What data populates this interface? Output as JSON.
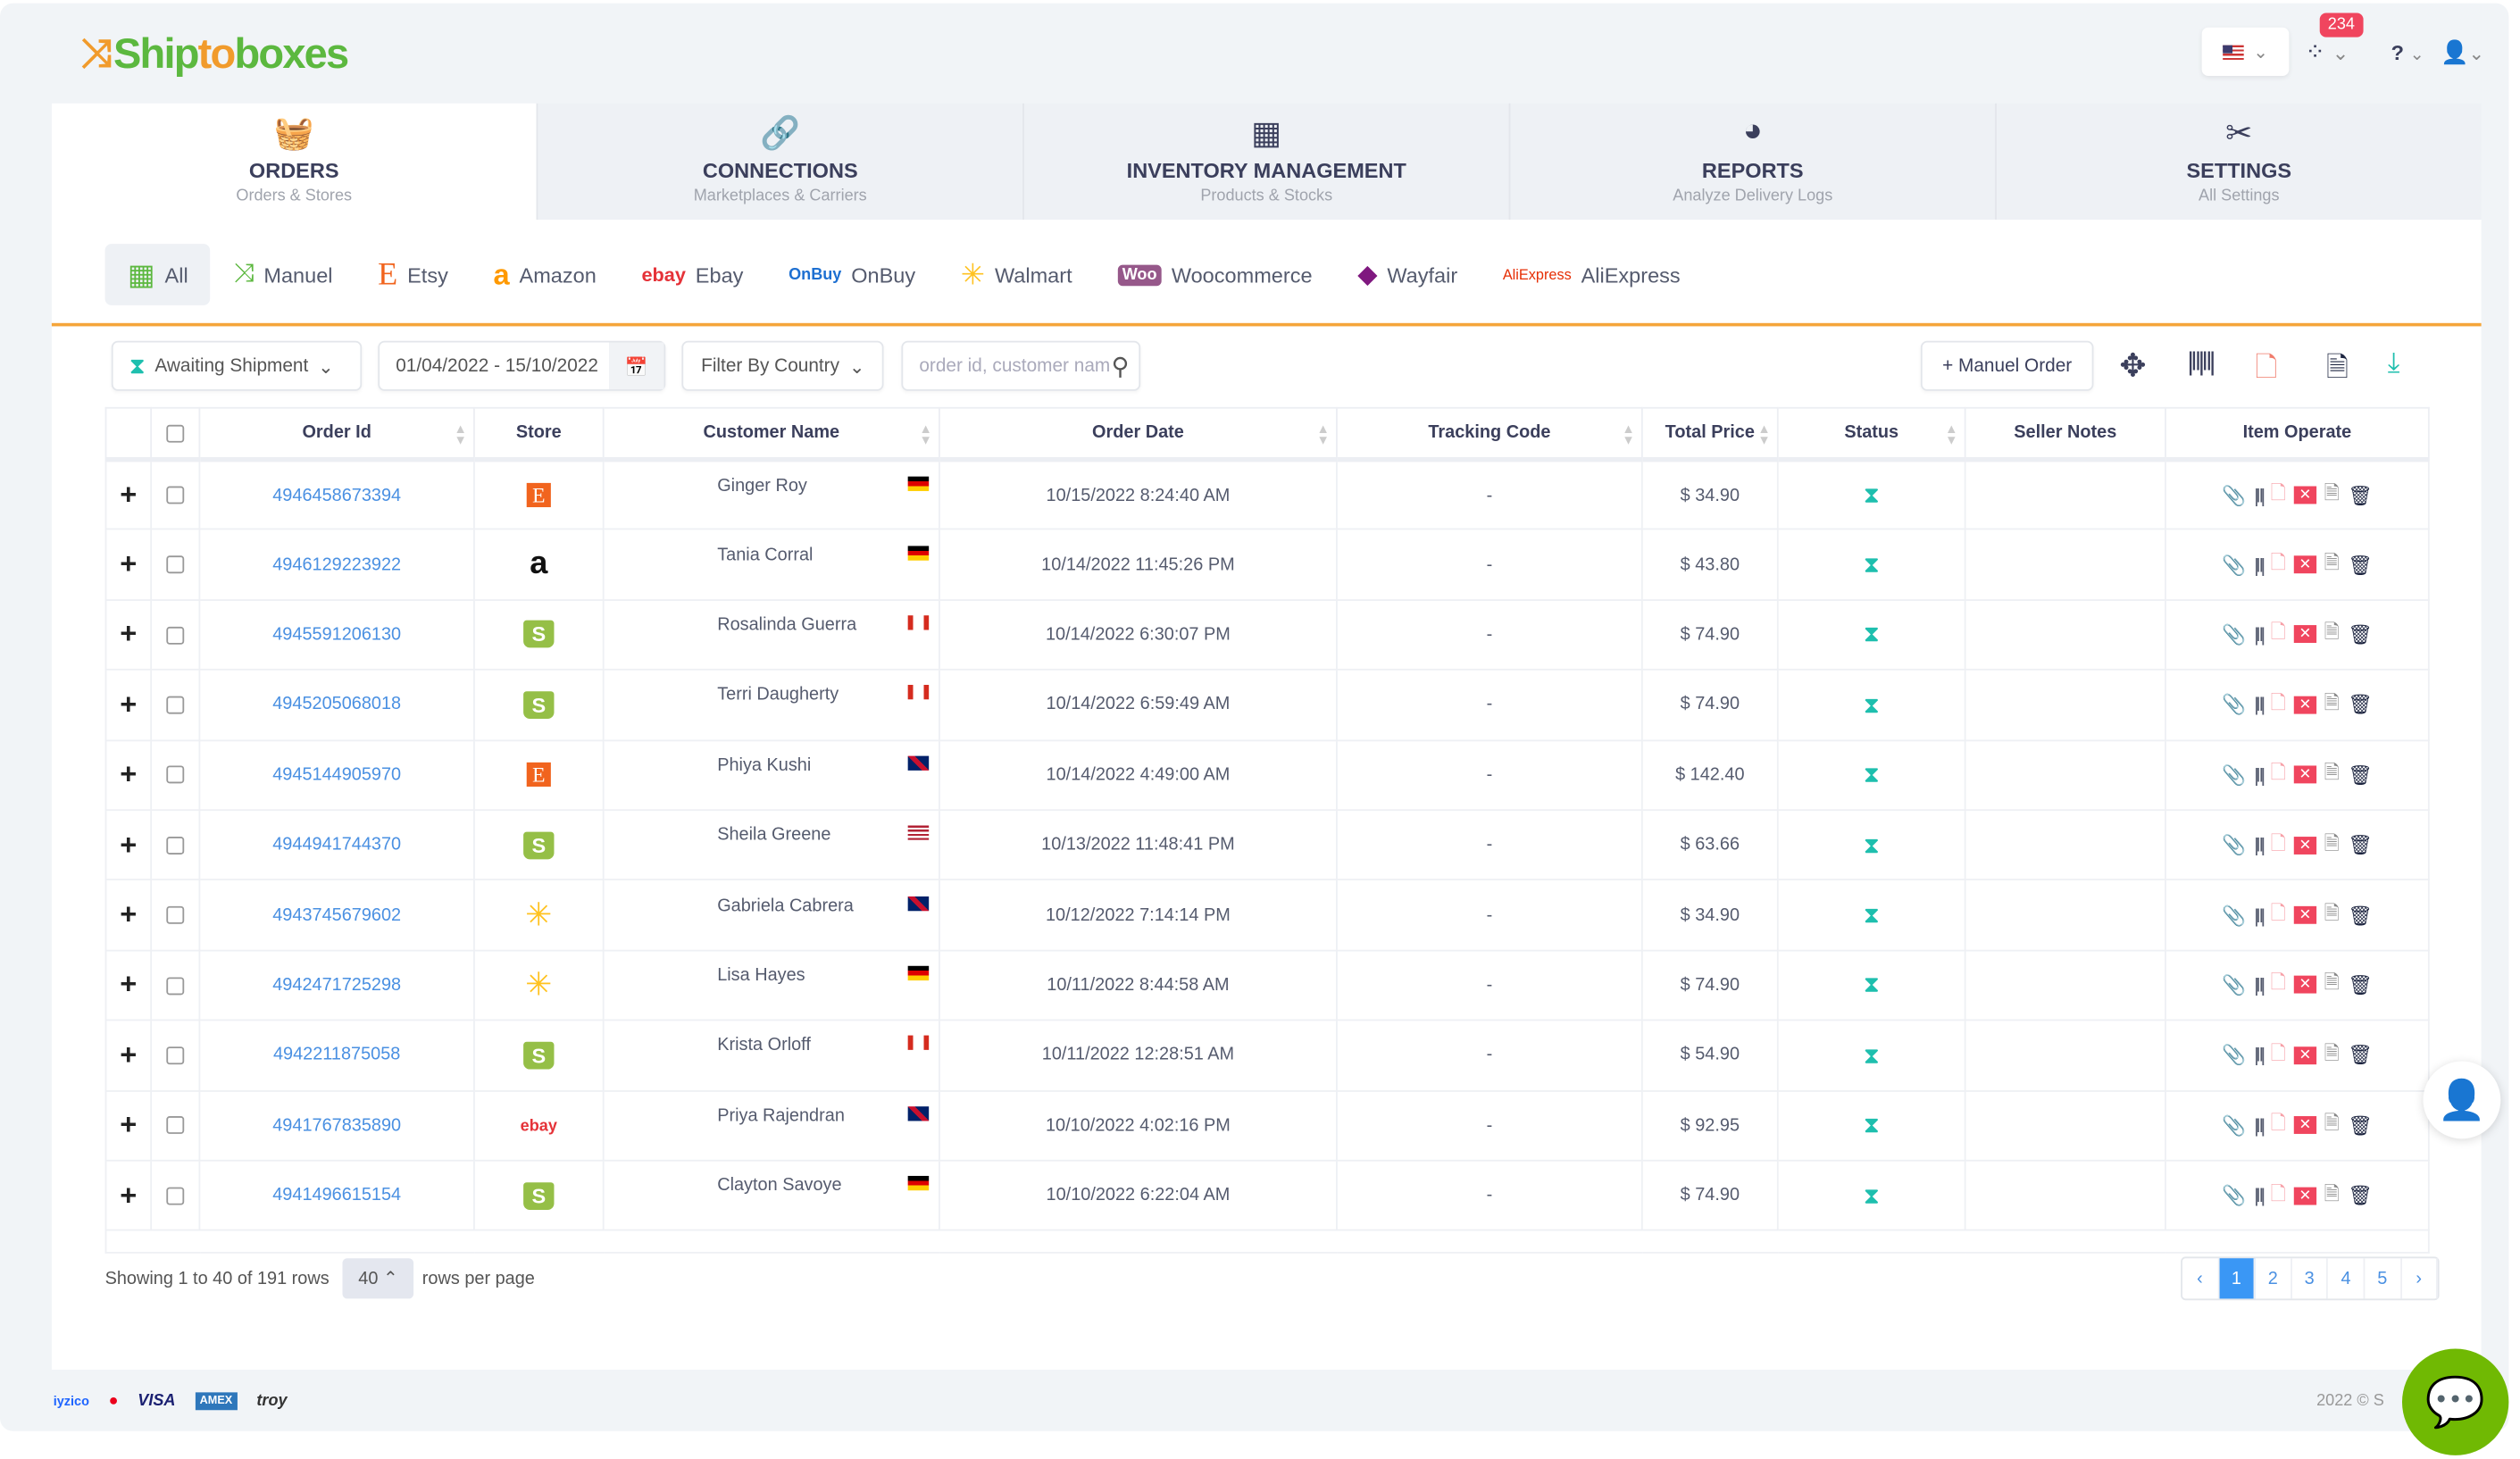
{
  "brand": {
    "name_part1": "Ship",
    "name_part2": "to",
    "name_part3": "boxes"
  },
  "topbar": {
    "notification_count": "234",
    "language": "US"
  },
  "nav": [
    {
      "label": "ORDERS",
      "sub": "Orders & Stores",
      "icon": "basket-icon"
    },
    {
      "label": "CONNECTIONS",
      "sub": "Marketplaces & Carriers",
      "icon": "link-icon"
    },
    {
      "label": "INVENTORY MANAGEMENT",
      "sub": "Products & Stocks",
      "icon": "warehouse-icon"
    },
    {
      "label": "REPORTS",
      "sub": "Analyze Delivery Logs",
      "icon": "pie-chart-icon"
    },
    {
      "label": "SETTINGS",
      "sub": "All Settings",
      "icon": "tools-icon"
    }
  ],
  "stores": [
    {
      "label": "All",
      "logo": ""
    },
    {
      "label": "Manuel",
      "logo": ""
    },
    {
      "label": "Etsy",
      "logo": "E"
    },
    {
      "label": "Amazon",
      "logo": "a"
    },
    {
      "label": "Ebay",
      "logo": "ebay"
    },
    {
      "label": "OnBuy",
      "logo": "OnBuy"
    },
    {
      "label": "Walmart",
      "logo": ""
    },
    {
      "label": "Woocommerce",
      "logo": "Woo"
    },
    {
      "label": "Wayfair",
      "logo": ""
    },
    {
      "label": "AliExpress",
      "logo": "AliExpress"
    }
  ],
  "filters": {
    "status": "Awaiting Shipment",
    "date_range": "01/04/2022 - 15/10/2022",
    "country": "Filter By Country",
    "search_placeholder": "order id, customer nam",
    "manual_order": "+ Manuel Order"
  },
  "table": {
    "headers": [
      "Order Id",
      "Store",
      "Customer Name",
      "Order Date",
      "Tracking Code",
      "Total Price",
      "Status",
      "Seller Notes",
      "Item Operate"
    ],
    "rows": [
      {
        "id": "4946458673394",
        "store": "etsy",
        "name": "Ginger Roy",
        "country": "DE",
        "date": "10/15/2022 8:24:40 AM",
        "tracking": "-",
        "price": "$ 34.90"
      },
      {
        "id": "4946129223922",
        "store": "amazon",
        "name": "Tania Corral",
        "country": "DE",
        "date": "10/14/2022 11:45:26 PM",
        "tracking": "-",
        "price": "$ 43.80"
      },
      {
        "id": "4945591206130",
        "store": "shopify",
        "name": "Rosalinda Guerra",
        "country": "CA",
        "date": "10/14/2022 6:30:07 PM",
        "tracking": "-",
        "price": "$ 74.90"
      },
      {
        "id": "4945205068018",
        "store": "shopify",
        "name": "Terri Daugherty",
        "country": "CA",
        "date": "10/14/2022 6:59:49 AM",
        "tracking": "-",
        "price": "$ 74.90"
      },
      {
        "id": "4945144905970",
        "store": "etsy",
        "name": "Phiya Kushi",
        "country": "GB",
        "date": "10/14/2022 4:49:00 AM",
        "tracking": "-",
        "price": "$ 142.40"
      },
      {
        "id": "4944941744370",
        "store": "shopify",
        "name": "Sheila Greene",
        "country": "US",
        "date": "10/13/2022 11:48:41 PM",
        "tracking": "-",
        "price": "$ 63.66"
      },
      {
        "id": "4943745679602",
        "store": "walmart",
        "name": "Gabriela Cabrera",
        "country": "GB",
        "date": "10/12/2022 7:14:14 PM",
        "tracking": "-",
        "price": "$ 34.90"
      },
      {
        "id": "4942471725298",
        "store": "walmart",
        "name": "Lisa Hayes",
        "country": "DE",
        "date": "10/11/2022 8:44:58 AM",
        "tracking": "-",
        "price": "$ 74.90"
      },
      {
        "id": "4942211875058",
        "store": "shopify",
        "name": "Krista Orloff",
        "country": "CA",
        "date": "10/11/2022 12:28:51 AM",
        "tracking": "-",
        "price": "$ 54.90"
      },
      {
        "id": "4941767835890",
        "store": "ebay",
        "name": "Priya Rajendran",
        "country": "GB",
        "date": "10/10/2022 4:02:16 PM",
        "tracking": "-",
        "price": "$ 92.95"
      },
      {
        "id": "4941496615154",
        "store": "shopify",
        "name": "Clayton Savoye",
        "country": "DE",
        "date": "10/10/2022 6:22:04 AM",
        "tracking": "-",
        "price": "$ 74.90"
      }
    ]
  },
  "pagination": {
    "showing": "Showing 1 to 40 of 191 rows",
    "page_size": "40",
    "per_page_label": "rows per page",
    "pages": [
      "‹",
      "1",
      "2",
      "3",
      "4",
      "5",
      "›"
    ],
    "current": "1"
  },
  "footer": {
    "payments": [
      "iyzico",
      "mastercard",
      "VISA",
      "amex",
      "troy"
    ],
    "copyright": "2022 © S"
  },
  "colors": {
    "accent": "#f5a53a",
    "brand_green": "#5cb83f",
    "link": "#4a90e2",
    "status": "#1ebfae",
    "chat": "#70b903"
  }
}
